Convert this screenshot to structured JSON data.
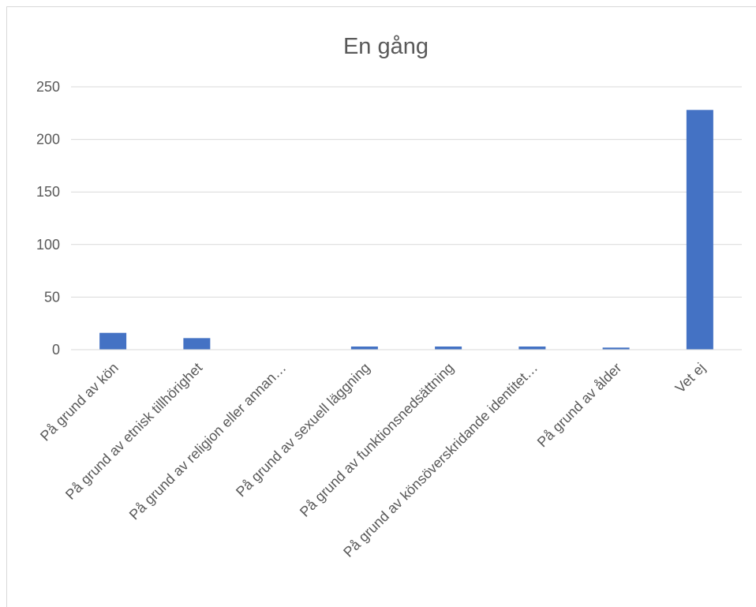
{
  "chart_data": {
    "type": "bar",
    "title": "En gång",
    "categories": [
      "På grund av kön",
      "På grund av etnisk tillhörighet",
      "På grund av religion eller annan…",
      "På grund av sexuell läggning",
      "På grund av funktionsnedsättning",
      "På grund av könsöverskridande identitet…",
      "På grund av ålder",
      "Vet ej"
    ],
    "values": [
      16,
      11,
      0,
      3,
      3,
      3,
      2,
      228
    ],
    "ylim": [
      0,
      250
    ],
    "yticks": [
      0,
      50,
      100,
      150,
      200,
      250
    ],
    "grid": true,
    "legend": "none",
    "bar_color": "#4472c4"
  }
}
